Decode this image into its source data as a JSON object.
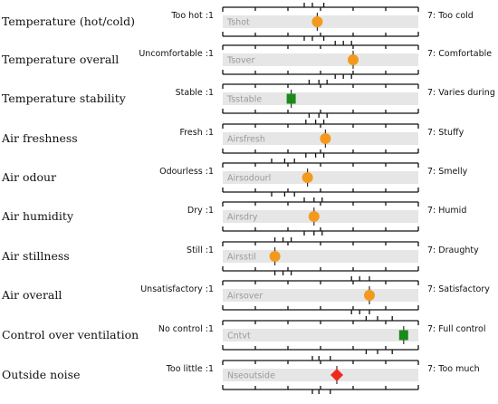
{
  "chart_data": {
    "type": "scatter",
    "scale": {
      "min": 1,
      "max": 7
    },
    "colors": {
      "track": "#e6e6e6",
      "frame": "#111111",
      "circle": "#f39a1e",
      "square": "#1a8a1a",
      "diamond": "#ee2a1c"
    },
    "rows": [
      {
        "label": "Temperature (hot/cold)",
        "low": "Too hot :1",
        "high": "7: Too cold",
        "code": "Tshot",
        "value": 3.9,
        "marker": "circle",
        "ticks": [
          3.5,
          3.75,
          4.1
        ]
      },
      {
        "label": "Temperature overall",
        "low": "Uncomfortable :1",
        "high": "7: Comfortable",
        "code": "Tsover",
        "value": 5.0,
        "marker": "circle",
        "ticks": [
          4.45,
          4.7,
          4.95
        ]
      },
      {
        "label": "Temperature stability",
        "low": "Stable :1",
        "high": "7: Varies during day",
        "code": "Tsstable",
        "value": 3.1,
        "marker": "square",
        "ticks": [
          3.65,
          3.95,
          4.2
        ]
      },
      {
        "label": "Air freshness",
        "low": "Fresh :1",
        "high": "7: Stuffy",
        "code": "Airsfresh",
        "value": 4.15,
        "marker": "circle",
        "ticks": [
          3.55,
          3.85,
          4.1
        ]
      },
      {
        "label": "Air odour",
        "low": "Odourless :1",
        "high": "7: Smelly",
        "code": "Airsodourl",
        "value": 3.6,
        "marker": "circle",
        "ticks": [
          2.5,
          2.9,
          3.2
        ]
      },
      {
        "label": "Air humidity",
        "low": "Dry :1",
        "high": "7: Humid",
        "code": "Airsdry",
        "value": 3.8,
        "marker": "circle",
        "ticks": [
          3.5,
          3.8,
          4.05
        ]
      },
      {
        "label": "Air stillness",
        "low": "Still :1",
        "high": "7: Draughty",
        "code": "Airsstil",
        "value": 2.6,
        "marker": "circle",
        "ticks": [
          2.6,
          2.85,
          3.1
        ]
      },
      {
        "label": "Air overall",
        "low": "Unsatisfactory :1",
        "high": "7: Satisfactory",
        "code": "Airsover",
        "value": 5.5,
        "marker": "circle",
        "ticks": [
          4.95,
          5.2,
          5.5
        ]
      },
      {
        "label": "Control over ventilation",
        "low": "No control :1",
        "high": "7: Full control",
        "code": "Cntvt",
        "value": 6.55,
        "marker": "square",
        "ticks": [
          5.4,
          5.75,
          6.2
        ]
      },
      {
        "label": "Outside noise",
        "low": "Too little :1",
        "high": "7: Too much",
        "code": "Nseoutside",
        "value": 4.5,
        "marker": "diamond",
        "ticks": [
          3.75,
          3.95,
          4.3
        ]
      }
    ]
  }
}
